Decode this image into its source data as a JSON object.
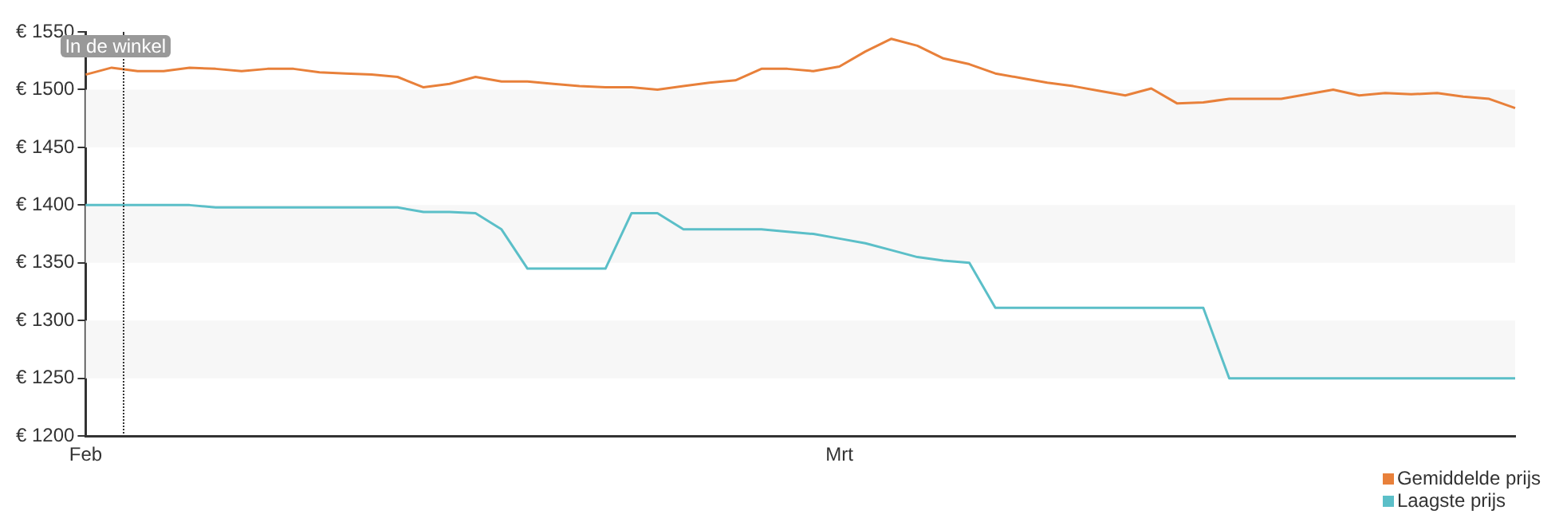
{
  "chart_data": {
    "type": "line",
    "categories": [
      "Feb",
      null,
      null,
      null,
      null,
      null,
      null,
      null,
      null,
      null,
      null,
      null,
      null,
      null,
      null,
      null,
      null,
      null,
      null,
      null,
      null,
      null,
      null,
      null,
      null,
      null,
      null,
      null,
      null,
      "Mrt",
      null,
      null,
      null,
      null,
      null,
      null,
      null,
      null,
      null,
      null,
      null,
      null,
      null,
      null,
      null,
      null,
      null,
      null,
      null,
      null,
      null,
      null,
      null,
      null,
      null,
      null
    ],
    "series": [
      {
        "name": "Gemiddelde prijs",
        "color": "#e8803a",
        "values": [
          1513,
          1519,
          1516,
          1516,
          1519,
          1518,
          1516,
          1518,
          1518,
          1515,
          1514,
          1513,
          1511,
          1502,
          1505,
          1511,
          1507,
          1507,
          1505,
          1503,
          1502,
          1502,
          1500,
          1503,
          1506,
          1508,
          1518,
          1518,
          1516,
          1520,
          1533,
          1544,
          1538,
          1527,
          1522,
          1514,
          1510,
          1506,
          1503,
          1499,
          1495,
          1501,
          1488,
          1489,
          1492,
          1492,
          1492,
          1496,
          1500,
          1495,
          1497,
          1496,
          1497,
          1494,
          1492,
          1484
        ]
      },
      {
        "name": "Laagste prijs",
        "color": "#5bbfc8",
        "values": [
          1400,
          1400,
          1400,
          1400,
          1400,
          1398,
          1398,
          1398,
          1398,
          1398,
          1398,
          1398,
          1398,
          1394,
          1394,
          1393,
          1379,
          1345,
          1345,
          1345,
          1345,
          1393,
          1393,
          1379,
          1379,
          1379,
          1379,
          1377,
          1375,
          1371,
          1367,
          1361,
          1355,
          1352,
          1350,
          1311,
          1311,
          1311,
          1311,
          1311,
          1311,
          1311,
          1311,
          1311,
          1250,
          1250,
          1250,
          1250,
          1250,
          1250,
          1250,
          1250,
          1250,
          1250,
          1250,
          1250
        ]
      }
    ],
    "ylim": [
      1200,
      1550
    ],
    "yticks": [
      {
        "value": 1200,
        "label": "€ 1200"
      },
      {
        "value": 1250,
        "label": "€ 1250"
      },
      {
        "value": 1300,
        "label": "€ 1300"
      },
      {
        "value": 1350,
        "label": "€ 1350"
      },
      {
        "value": 1400,
        "label": "€ 1400"
      },
      {
        "value": 1450,
        "label": "€ 1450"
      },
      {
        "value": 1500,
        "label": "€ 1500"
      },
      {
        "value": 1550,
        "label": "€ 1550"
      }
    ],
    "bands": [
      {
        "axis": "y",
        "from": 1250,
        "to": 1300,
        "color": "#f7f7f7"
      },
      {
        "axis": "y",
        "from": 1350,
        "to": 1400,
        "color": "#f7f7f7"
      },
      {
        "axis": "y",
        "from": 1450,
        "to": 1500,
        "color": "#f7f7f7"
      }
    ],
    "annotations": [
      "In de winkel"
    ],
    "grid": false,
    "marker": "none",
    "line_style": "solid",
    "legend": "bottom right"
  }
}
